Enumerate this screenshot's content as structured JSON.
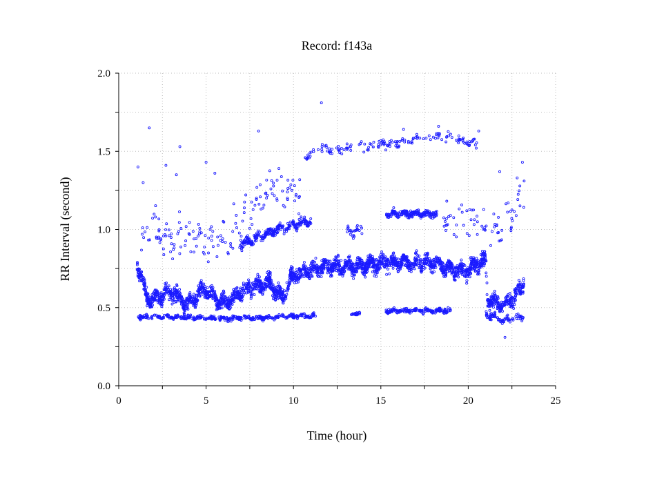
{
  "chart_data": {
    "type": "scatter",
    "title": "Record:  f143a",
    "xlabel": "Time (hour)",
    "ylabel": "RR Interval (second)",
    "xlim": [
      0,
      25
    ],
    "ylim": [
      0,
      2.0
    ],
    "xticks": [
      "0",
      "5",
      "10",
      "15",
      "20",
      "25"
    ],
    "yticks": [
      "0.0",
      "0.5",
      "1.0",
      "1.5",
      "2.0"
    ],
    "grid": true,
    "marker_color": "#1a1aff",
    "bands": [
      {
        "segments": [
          [
            1.05,
            0.78
          ],
          [
            1.3,
            0.7
          ],
          [
            1.6,
            0.56
          ],
          [
            2.0,
            0.55
          ],
          [
            2.5,
            0.58
          ],
          [
            3.0,
            0.6
          ],
          [
            3.5,
            0.56
          ],
          [
            4.0,
            0.52
          ],
          [
            4.5,
            0.58
          ],
          [
            5.0,
            0.62
          ],
          [
            5.5,
            0.56
          ],
          [
            6.0,
            0.53
          ],
          [
            6.6,
            0.56
          ],
          [
            7.0,
            0.6
          ],
          [
            7.5,
            0.63
          ],
          [
            8.0,
            0.64
          ],
          [
            8.6,
            0.66
          ],
          [
            9.0,
            0.6
          ],
          [
            9.4,
            0.56
          ],
          [
            9.8,
            0.68
          ],
          [
            10.2,
            0.72
          ],
          [
            11.0,
            0.74
          ],
          [
            12.0,
            0.76
          ],
          [
            13.0,
            0.76
          ],
          [
            14.0,
            0.77
          ],
          [
            15.0,
            0.78
          ],
          [
            16.0,
            0.79
          ],
          [
            17.0,
            0.78
          ],
          [
            18.0,
            0.79
          ],
          [
            19.0,
            0.75
          ],
          [
            20.0,
            0.74
          ],
          [
            20.5,
            0.78
          ],
          [
            21.0,
            0.8
          ],
          [
            21.1,
            0.56
          ],
          [
            22.0,
            0.52
          ],
          [
            22.6,
            0.56
          ],
          [
            23.2,
            0.66
          ]
        ],
        "spread": 0.07,
        "count": 2600
      },
      {
        "segments": [
          [
            1.1,
            0.44
          ],
          [
            3.0,
            0.44
          ],
          [
            6.0,
            0.43
          ],
          [
            9.0,
            0.44
          ],
          [
            11.3,
            0.45
          ]
        ],
        "spread": 0.018,
        "count": 420
      },
      {
        "segments": [
          [
            13.2,
            0.46
          ],
          [
            13.8,
            0.46
          ]
        ],
        "spread": 0.012,
        "count": 25
      },
      {
        "segments": [
          [
            15.3,
            0.48
          ],
          [
            17.0,
            0.48
          ],
          [
            19.0,
            0.48
          ]
        ],
        "spread": 0.02,
        "count": 180
      },
      {
        "segments": [
          [
            21.0,
            0.46
          ],
          [
            22.0,
            0.42
          ],
          [
            23.2,
            0.44
          ]
        ],
        "spread": 0.03,
        "count": 80
      },
      {
        "segments": [
          [
            7.0,
            0.9
          ],
          [
            8.0,
            0.95
          ],
          [
            9.0,
            1.0
          ],
          [
            10.0,
            1.03
          ],
          [
            11.0,
            1.05
          ]
        ],
        "spread": 0.04,
        "count": 260
      },
      {
        "segments": [
          [
            15.3,
            1.1
          ],
          [
            16.5,
            1.1
          ],
          [
            18.2,
            1.1
          ]
        ],
        "spread": 0.03,
        "count": 200
      },
      {
        "segments": [
          [
            10.5,
            1.45
          ],
          [
            11.5,
            1.52
          ],
          [
            12.5,
            1.51
          ],
          [
            14.0,
            1.53
          ],
          [
            15.5,
            1.55
          ],
          [
            17.0,
            1.58
          ],
          [
            18.5,
            1.6
          ],
          [
            20.5,
            1.55
          ]
        ],
        "spread": 0.04,
        "count": 160
      },
      {
        "segments": [
          [
            1.2,
            1.0
          ],
          [
            3.0,
            0.95
          ],
          [
            5.0,
            0.9
          ],
          [
            6.5,
            0.95
          ],
          [
            7.5,
            1.1
          ],
          [
            9.0,
            1.3
          ],
          [
            10.5,
            1.25
          ]
        ],
        "spread": 0.18,
        "count": 160
      },
      {
        "segments": [
          [
            13.0,
            1.0
          ],
          [
            14.0,
            1.0
          ]
        ],
        "spread": 0.05,
        "count": 25
      },
      {
        "segments": [
          [
            18.5,
            1.05
          ],
          [
            19.8,
            1.1
          ],
          [
            21.5,
            1.0
          ],
          [
            23.2,
            1.2
          ]
        ],
        "spread": 0.14,
        "count": 70
      }
    ],
    "outliers": [
      [
        11.6,
        1.81
      ],
      [
        1.75,
        1.65
      ],
      [
        3.5,
        1.53
      ],
      [
        8.0,
        1.63
      ],
      [
        16.3,
        1.64
      ],
      [
        18.3,
        1.66
      ],
      [
        20.6,
        1.63
      ],
      [
        22.1,
        0.31
      ],
      [
        2.7,
        1.41
      ],
      [
        3.3,
        1.35
      ],
      [
        23.1,
        1.43
      ],
      [
        23.2,
        1.31
      ],
      [
        22.8,
        1.33
      ],
      [
        21.8,
        1.37
      ],
      [
        5.0,
        1.43
      ],
      [
        5.5,
        1.36
      ],
      [
        1.1,
        1.4
      ],
      [
        1.4,
        1.3
      ]
    ]
  }
}
